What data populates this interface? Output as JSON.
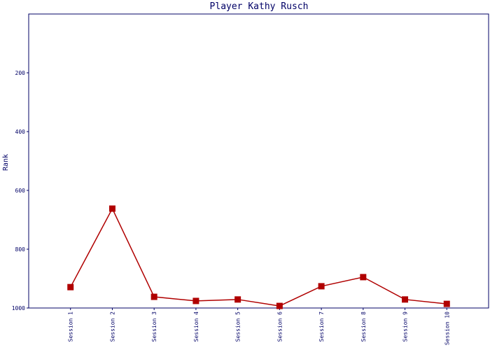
{
  "chart_data": {
    "type": "line",
    "title": "Player Kathy Rusch",
    "y_label": "Rank",
    "categories": [
      "Session 1",
      "Session 2",
      "Session 3",
      "Session 4",
      "Session 5",
      "Session 6",
      "Session 7",
      "Session 8",
      "Session 9",
      "Session 10"
    ],
    "series": [
      {
        "name": "Rank",
        "color": "#b00000",
        "values": [
          929,
          662,
          962,
          976,
          971,
          993,
          926,
          895,
          971,
          986
        ]
      }
    ],
    "ylim": [
      0,
      1000
    ],
    "yticks": [
      200,
      400,
      600,
      800,
      1000
    ],
    "y_inverted": true,
    "grid": false
  }
}
